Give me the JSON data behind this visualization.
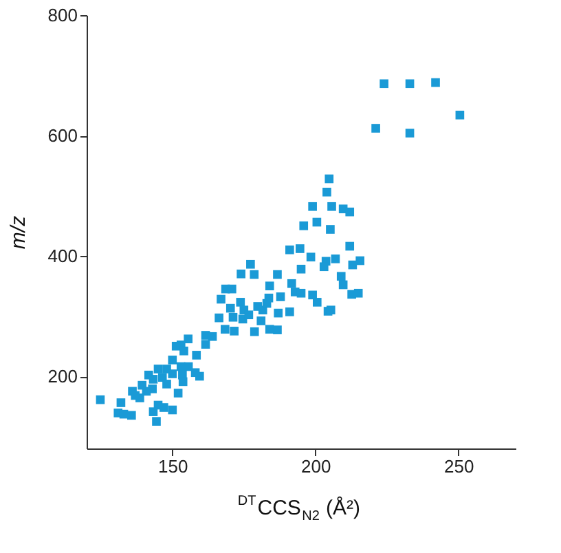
{
  "chart_data": {
    "type": "scatter",
    "xlabel": "$^{DT}$CCS$_{N2}$ (Å²)",
    "ylabel": "m/z",
    "marker": "square",
    "grid": false,
    "xlim": [
      120,
      270
    ],
    "xticks": [
      150,
      200,
      250
    ],
    "ylim": [
      80,
      800
    ],
    "yticks": [
      200,
      400,
      600,
      800
    ],
    "series": [
      {
        "color": "#1a9ad6",
        "x": [
          124.8,
          221.1,
          233,
          250.5,
          224,
          233,
          242,
          204.8,
          204,
          199,
          205.7,
          209.7,
          212,
          200.5,
          195.9,
          205.2,
          191,
          194.6,
          198.4,
          212,
          203.7,
          207,
          215.6,
          213,
          203,
          195,
          177.3,
          174,
          178.6,
          186.7,
          209,
          209.7,
          184,
          191.7,
          192.9,
          195,
          199,
          200.6,
          168.6,
          170.8,
          167,
          173.8,
          212.7,
          215,
          187.8,
          204.4,
          205.4,
          183.7,
          170.3,
          166.3,
          171.2,
          175,
          179.8,
          181.6,
          183,
          174.6,
          176.7,
          181,
          187,
          191,
          168.4,
          171.6,
          178.7,
          184,
          186.7,
          161.6,
          164,
          155.5,
          161.6,
          153,
          151.3,
          154,
          158.4,
          150,
          145,
          148,
          153,
          155.6,
          158,
          159.5,
          141.7,
          139.4,
          143.3,
          146.5,
          150,
          153.5,
          140.9,
          136,
          138.6,
          143,
          148,
          153.7,
          152,
          145,
          150,
          147,
          143.3,
          144.4,
          132,
          131,
          133,
          135.7,
          137
        ],
        "values": [
          161,
          612,
          604,
          634,
          686,
          686,
          688,
          528,
          506,
          482,
          482,
          478,
          473,
          456,
          450,
          444,
          410,
          412,
          398,
          416,
          391,
          395,
          392,
          385,
          382,
          378,
          386,
          370,
          369,
          369,
          366,
          352,
          350,
          354,
          340,
          338,
          335,
          323,
          345,
          345,
          328,
          323,
          336,
          338,
          332,
          308,
          310,
          330,
          313,
          297,
          298,
          310,
          316,
          310,
          321,
          295,
          302,
          292,
          305,
          307,
          278,
          275,
          274,
          278,
          277,
          268,
          266,
          262,
          253,
          252,
          250,
          242,
          235,
          227,
          212,
          212,
          216,
          216,
          206,
          200,
          202,
          185,
          195,
          198,
          204,
          202,
          175,
          175,
          164,
          179,
          187,
          191,
          172,
          152,
          144,
          148,
          141,
          125,
          156,
          139,
          137,
          135,
          168
        ]
      }
    ]
  }
}
